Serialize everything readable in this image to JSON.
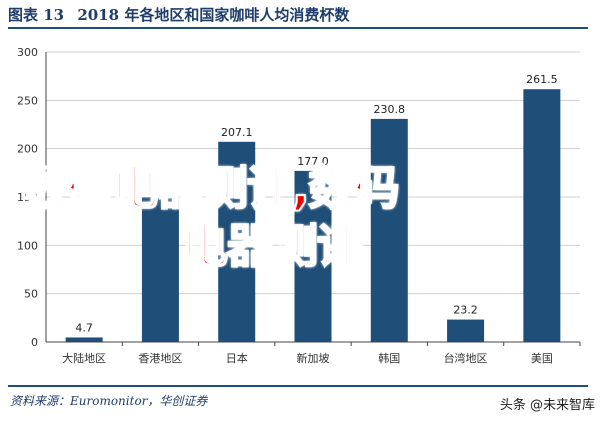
{
  "header": {
    "figure_label": "图表 13",
    "title": "2018 年各地区和国家咖啡人均消费杯数"
  },
  "footer": {
    "source": "资料来源：Euromonitor，华创证券",
    "watermark": "头条 @未来智库"
  },
  "overlay": {
    "line1": "数码电器测评,数码",
    "line2": "电器测评"
  },
  "chart_data": {
    "type": "bar",
    "categories": [
      "大陆地区",
      "香港地区",
      "日本",
      "新加坡",
      "韩国",
      "台湾地区",
      "美国"
    ],
    "values": [
      4.7,
      150.0,
      207.1,
      177.0,
      230.8,
      23.2,
      261.5
    ],
    "value_labels": [
      "4.7",
      "",
      "207.1",
      "177.0",
      "230.8",
      "23.2",
      "261.5"
    ],
    "yticks": [
      "0",
      "50",
      "100",
      "150",
      "200",
      "250",
      "300"
    ],
    "ylim": [
      0,
      300
    ],
    "bar_color": "#1f4e79",
    "grid": true
  }
}
